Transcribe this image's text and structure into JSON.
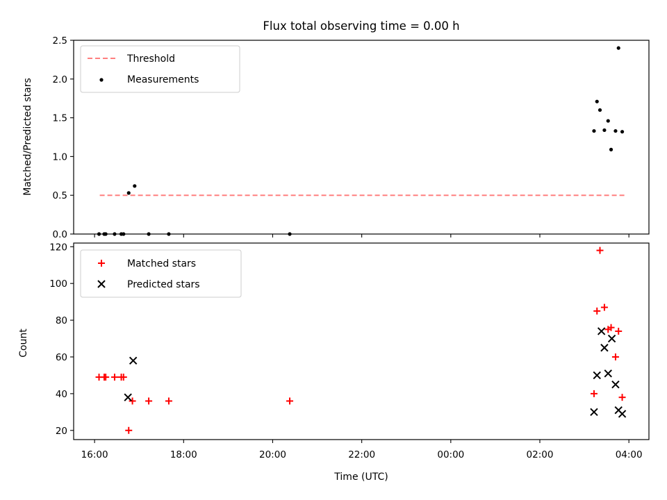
{
  "chart_data": [
    {
      "type": "scatter",
      "title": "Flux total observing time = 0.00 h",
      "ylabel": "Matched/Predicted stars",
      "ylim": [
        0,
        2.5
      ],
      "yticks": [
        0.0,
        0.5,
        1.0,
        1.5,
        2.0,
        2.5
      ],
      "ytick_labels": [
        "0.0",
        "0.5",
        "1.0",
        "1.5",
        "2.0",
        "2.5"
      ],
      "xlim_hours_since_16": [
        -0.47,
        12.45
      ],
      "legend_position": "top-left",
      "threshold": {
        "name": "Threshold",
        "value": 0.5,
        "x_from": "16:07",
        "x_to": "03:54",
        "color": "#ff7f7f"
      },
      "series": [
        {
          "name": "Measurements",
          "marker": "dot",
          "color": "#000000",
          "x": [
            "16:06",
            "16:13",
            "16:15",
            "16:27",
            "16:36",
            "16:39",
            "16:46",
            "16:54",
            "17:13",
            "17:40",
            "20:23",
            "03:13",
            "03:17",
            "03:21",
            "03:27",
            "03:32",
            "03:36",
            "03:42",
            "03:46",
            "03:51"
          ],
          "y": [
            0,
            0,
            0,
            0,
            0,
            0,
            0.53,
            0.62,
            0,
            0,
            0,
            1.33,
            1.71,
            1.6,
            1.34,
            1.46,
            1.09,
            1.33,
            2.4,
            1.32
          ]
        }
      ]
    },
    {
      "type": "scatter",
      "xlabel": "Time (UTC)",
      "ylabel": "Count",
      "ylim": [
        15,
        122
      ],
      "yticks": [
        20,
        40,
        60,
        80,
        100,
        120
      ],
      "ytick_labels": [
        "20",
        "40",
        "60",
        "80",
        "100",
        "120"
      ],
      "xticks": [
        "16:00",
        "18:00",
        "20:00",
        "22:00",
        "00:00",
        "02:00",
        "04:00"
      ],
      "legend_position": "top-left",
      "series": [
        {
          "name": "Matched stars",
          "marker": "plus",
          "color": "#ff0000",
          "x": [
            "16:06",
            "16:13",
            "16:15",
            "16:27",
            "16:36",
            "16:39",
            "16:46",
            "16:51",
            "17:13",
            "17:40",
            "20:23",
            "03:13",
            "03:17",
            "03:21",
            "03:27",
            "03:32",
            "03:36",
            "03:42",
            "03:46",
            "03:51"
          ],
          "y": [
            49,
            49,
            49,
            49,
            49,
            49,
            20,
            36,
            36,
            36,
            36,
            40,
            85,
            118,
            87,
            75,
            76,
            60,
            74,
            38
          ]
        },
        {
          "name": "Predicted stars",
          "marker": "x",
          "color": "#000000",
          "x": [
            "16:45",
            "16:52",
            "03:13",
            "03:17",
            "03:23",
            "03:27",
            "03:32",
            "03:37",
            "03:42",
            "03:46",
            "03:51"
          ],
          "y": [
            38,
            58,
            30,
            50,
            74,
            65,
            51,
            70,
            45,
            31,
            29
          ]
        }
      ]
    }
  ]
}
